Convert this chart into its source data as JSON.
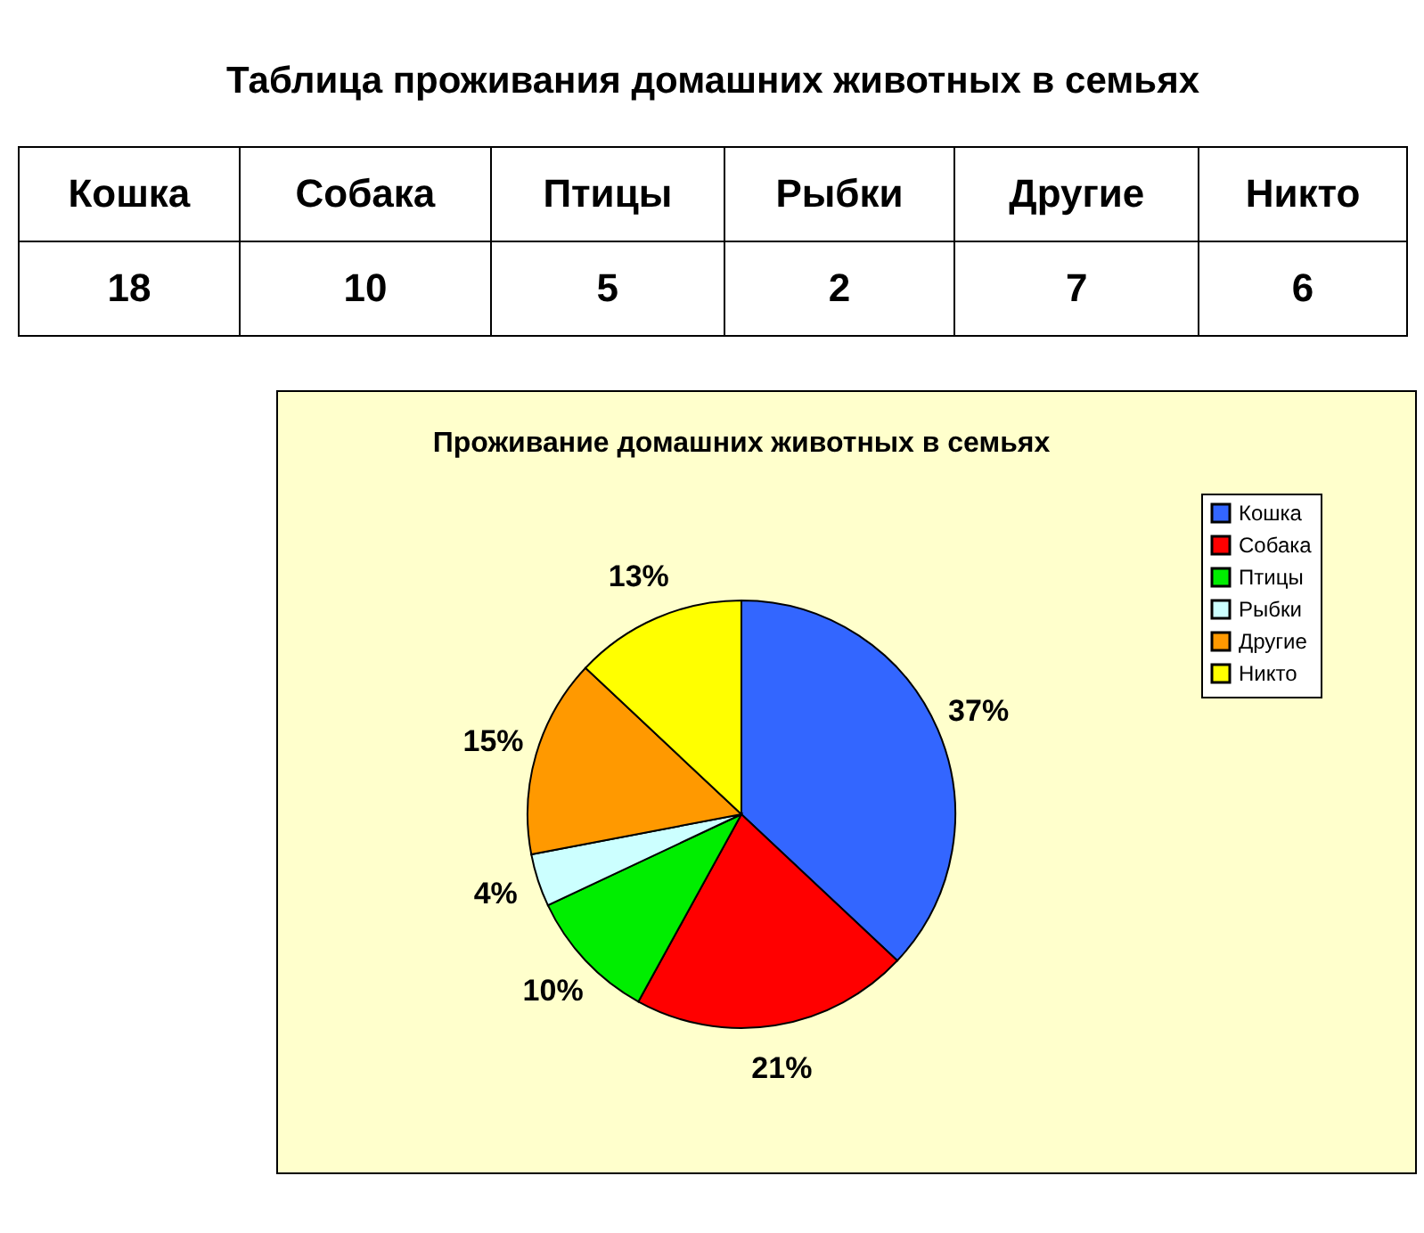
{
  "chart_data": {
    "type": "pie",
    "title": "Проживание домашних животных в семьях",
    "annotations": [
      "Таблица проживания домашних животных в семьях",
      "18",
      "10",
      "5",
      "2",
      "7",
      "6"
    ],
    "categories": [
      "Кошка",
      "Собака",
      "Птицы",
      "Рыбки",
      "Другие",
      "Никто"
    ],
    "values": [
      37,
      21,
      10,
      4,
      15,
      13
    ],
    "value_labels": [
      "37%",
      "21%",
      "10%",
      "4%",
      "15%",
      "13%"
    ],
    "colors": [
      "#3366ff",
      "#ff0000",
      "#00ee00",
      "#ccffff",
      "#ff9900",
      "#ffff00"
    ],
    "legend": "right"
  }
}
